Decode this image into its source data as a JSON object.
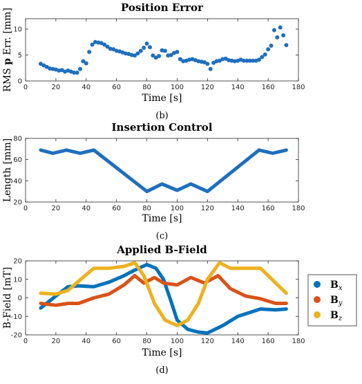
{
  "panels": [
    {
      "type": "scatter",
      "title": "Position Error",
      "xlabel": "Time [s]",
      "ylabel": "RMS p Err. [mm]",
      "caption": "(b)",
      "xlim": [
        0,
        180
      ],
      "ylim": [
        0,
        12
      ],
      "xticks": [
        0,
        20,
        40,
        60,
        80,
        100,
        120,
        140,
        160,
        180
      ],
      "yticks": [
        0,
        5,
        10
      ],
      "color": "#1f6fbf",
      "x": [
        10,
        12,
        14,
        16,
        18,
        20,
        22,
        24,
        26,
        28,
        30,
        32,
        34,
        36,
        38,
        40,
        42,
        44,
        46,
        48,
        50,
        52,
        54,
        56,
        58,
        60,
        62,
        64,
        66,
        68,
        70,
        72,
        74,
        76,
        78,
        80,
        82,
        84,
        86,
        88,
        90,
        92,
        94,
        96,
        98,
        100,
        102,
        104,
        106,
        108,
        110,
        112,
        114,
        116,
        118,
        120,
        122,
        124,
        126,
        128,
        130,
        132,
        134,
        136,
        138,
        140,
        142,
        144,
        146,
        148,
        150,
        152,
        154,
        156,
        158,
        160,
        162,
        164,
        166,
        168,
        170,
        172
      ],
      "y": [
        3.3,
        3.0,
        2.7,
        2.4,
        2.3,
        2.2,
        2.0,
        2.1,
        1.8,
        2.0,
        1.8,
        1.6,
        1.6,
        2.3,
        3.8,
        3.4,
        5.6,
        7.0,
        7.5,
        7.4,
        7.3,
        7.0,
        6.6,
        6.2,
        6.1,
        5.8,
        5.7,
        5.5,
        5.3,
        5.2,
        5.0,
        4.9,
        5.3,
        5.8,
        6.4,
        7.2,
        6.5,
        4.9,
        4.5,
        4.8,
        5.9,
        5.8,
        4.9,
        5.0,
        5.4,
        5.6,
        4.2,
        3.8,
        3.9,
        4.1,
        4.2,
        4.0,
        3.8,
        3.7,
        3.6,
        3.3,
        2.3,
        3.5,
        3.8,
        3.9,
        4.2,
        4.3,
        4.0,
        3.9,
        3.8,
        3.9,
        4.1,
        3.9,
        3.9,
        3.9,
        3.9,
        3.9,
        4.1,
        4.6,
        5.1,
        6.1,
        6.8,
        9.8,
        8.4,
        10.3,
        8.8,
        6.9
      ]
    },
    {
      "type": "line",
      "title": "Insertion Control",
      "xlabel": "Time [s]",
      "ylabel": "Length [mm]",
      "caption": "(c)",
      "xlim": [
        0,
        180
      ],
      "ylim": [
        20,
        80
      ],
      "xticks": [
        0,
        20,
        40,
        60,
        80,
        100,
        120,
        140,
        160,
        180
      ],
      "yticks": [
        20,
        40,
        60,
        80
      ],
      "color": "#1f6fbf",
      "x": [
        10,
        18,
        27,
        36,
        45,
        80,
        90,
        100,
        109,
        120,
        154,
        163,
        172
      ],
      "y": [
        69,
        66,
        69,
        66,
        69,
        30,
        37,
        31,
        37,
        30,
        69,
        66,
        69
      ]
    },
    {
      "type": "line",
      "title": "Applied B-Field",
      "xlabel": "Time [s]",
      "ylabel": "B-Field [mT]",
      "caption": "(d)",
      "xlim": [
        0,
        180
      ],
      "ylim": [
        -20,
        20
      ],
      "xticks": [
        0,
        20,
        40,
        60,
        80,
        100,
        120,
        140,
        160,
        180
      ],
      "yticks": [
        -20,
        -10,
        0,
        10,
        20
      ],
      "legend_position": "right",
      "series": [
        {
          "name": "Bx",
          "color": "#0072bd",
          "x": [
            10,
            20,
            28,
            35,
            45,
            55,
            65,
            72,
            80,
            86,
            91,
            96,
            100,
            107,
            114,
            120,
            130,
            140,
            155,
            165,
            172
          ],
          "y": [
            -5.5,
            1,
            6,
            6.5,
            6,
            8.5,
            12,
            15,
            18,
            16,
            10,
            -2,
            -12,
            -17,
            -18.5,
            -19,
            -15,
            -10,
            -6,
            -6.5,
            -6
          ]
        },
        {
          "name": "By",
          "color": "#d95319",
          "x": [
            10,
            20,
            28,
            35,
            45,
            55,
            65,
            72,
            78,
            85,
            91,
            100,
            109,
            118,
            127,
            135,
            145,
            155,
            165,
            172
          ],
          "y": [
            -3,
            -4,
            -3,
            -3,
            0,
            2,
            7,
            12,
            8,
            11,
            8,
            7,
            11,
            8,
            12,
            5,
            1,
            -0.5,
            -3,
            -3
          ]
        },
        {
          "name": "Bz",
          "color": "#edb120",
          "x": [
            10,
            20,
            28,
            35,
            45,
            55,
            65,
            72,
            78,
            85,
            92,
            100,
            107,
            114,
            120,
            128,
            135,
            145,
            155,
            165,
            172
          ],
          "y": [
            2.5,
            2,
            4,
            9,
            16,
            16,
            17,
            19,
            12,
            -3,
            -12,
            -15,
            -12,
            -3,
            10,
            19,
            16,
            16,
            16,
            8,
            2.5
          ]
        }
      ]
    }
  ],
  "legend": [
    {
      "base": "B",
      "sub": "x",
      "color": "#0072bd"
    },
    {
      "base": "B",
      "sub": "y",
      "color": "#d95319"
    },
    {
      "base": "B",
      "sub": "z",
      "color": "#edb120"
    }
  ]
}
